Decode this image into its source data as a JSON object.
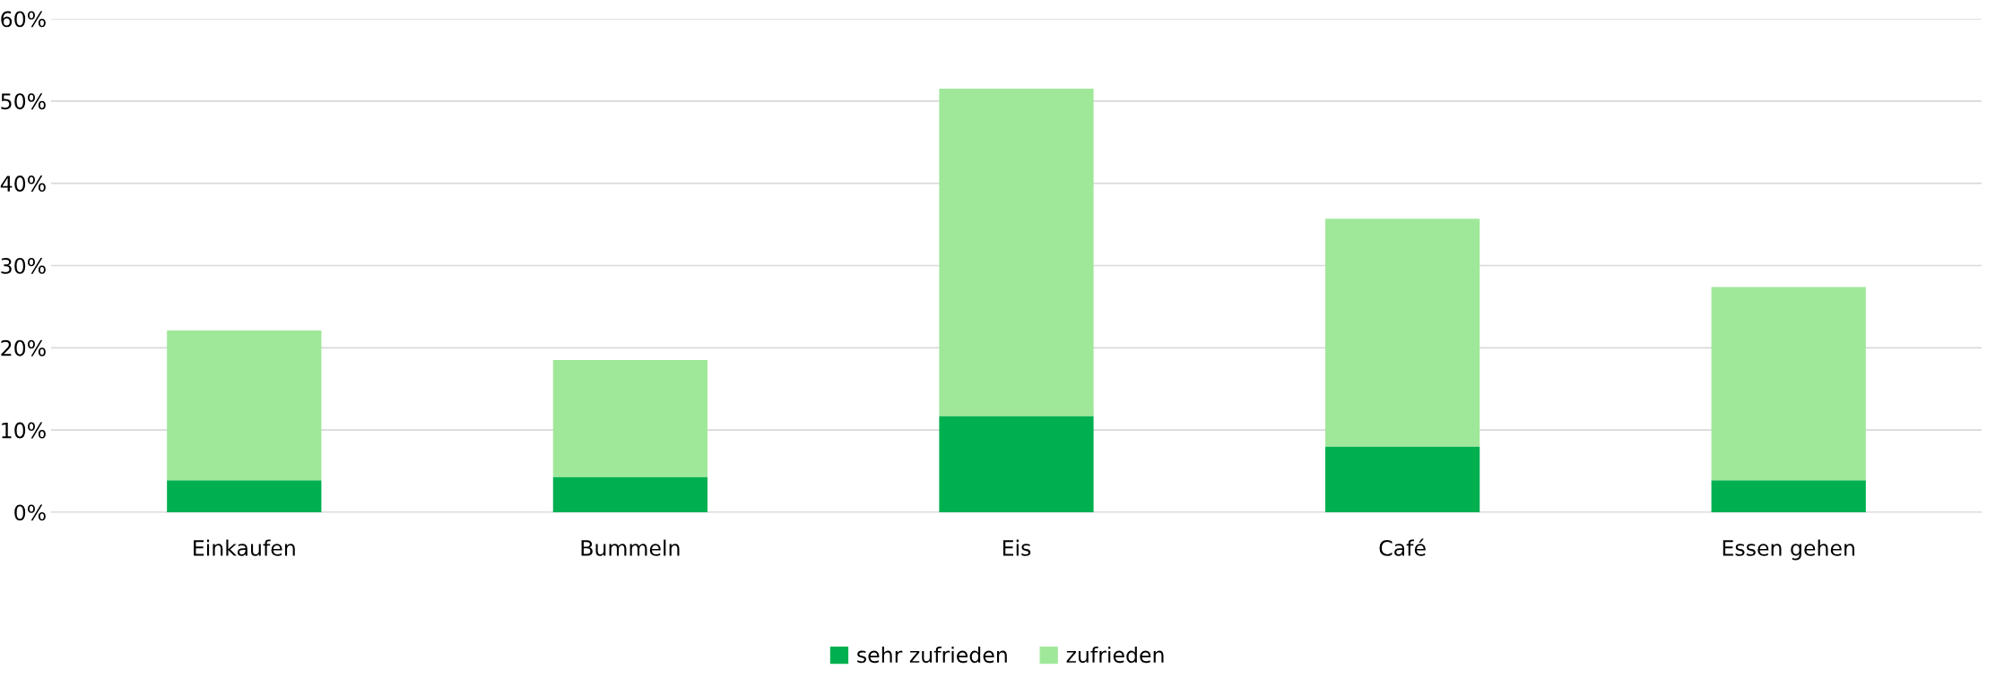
{
  "chart_data": {
    "type": "bar",
    "stacked": true,
    "categories": [
      "Einkaufen",
      "Bummeln",
      "Eis",
      "Café",
      "Essen gehen"
    ],
    "series": [
      {
        "name": "sehr zufrieden",
        "color": "#00b050",
        "values": [
          3.9,
          4.3,
          11.7,
          8.0,
          3.9
        ]
      },
      {
        "name": "zufrieden",
        "color": "#a0e899",
        "values": [
          18.2,
          14.2,
          39.8,
          27.7,
          23.5
        ]
      }
    ],
    "ylim": [
      0,
      60
    ],
    "yticks": [
      {
        "value": 0,
        "label": "0%"
      },
      {
        "value": 10,
        "label": "10%"
      },
      {
        "value": 20,
        "label": "20%"
      },
      {
        "value": 30,
        "label": "30%"
      },
      {
        "value": 40,
        "label": "40%"
      },
      {
        "value": 50,
        "label": "50%"
      },
      {
        "value": 60,
        "label": "60%"
      }
    ],
    "grid": "y",
    "legend": "bottom"
  }
}
